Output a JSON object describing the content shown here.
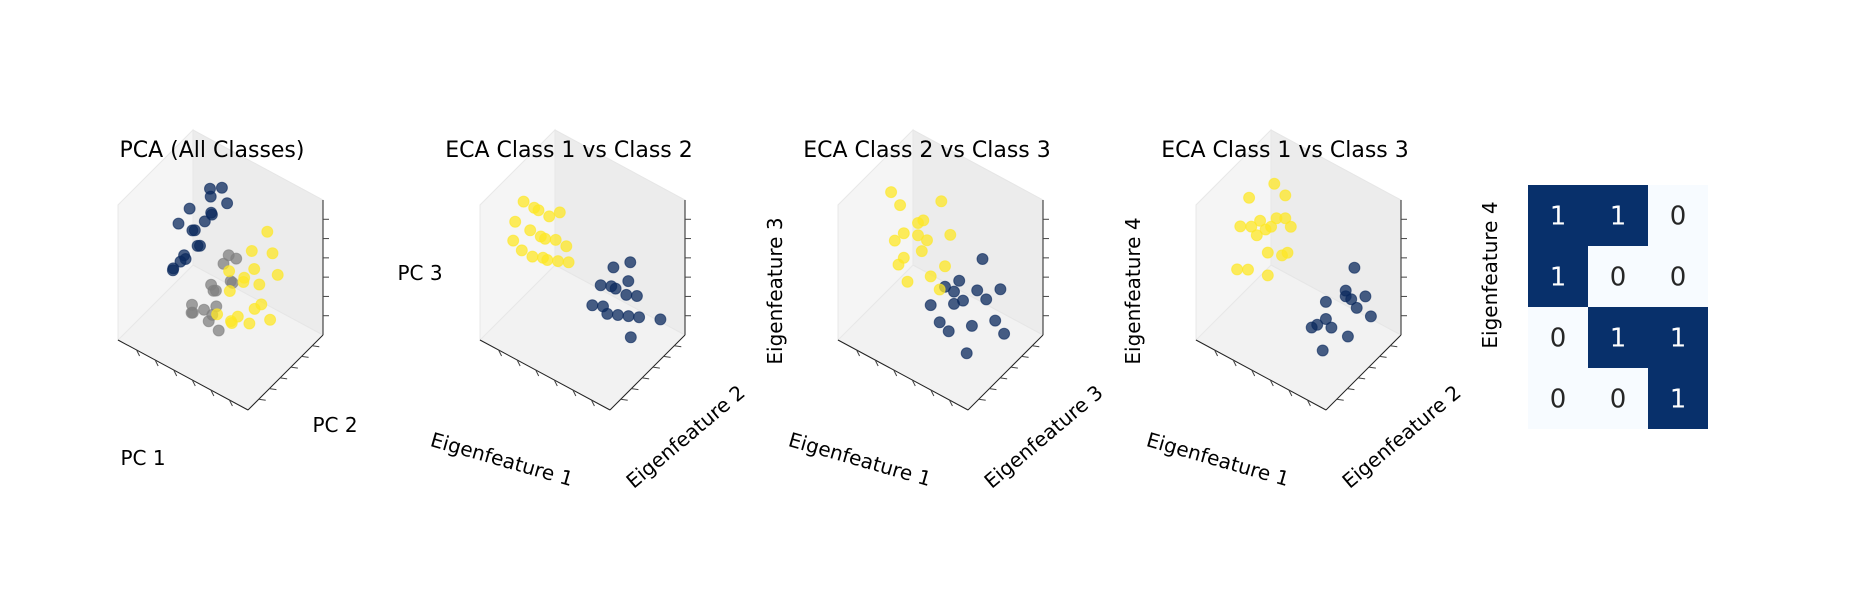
{
  "chart_data": [
    {
      "type": "scatter",
      "title": "PCA (All Classes)",
      "xlabel": "PC 1",
      "ylabel": "PC 2",
      "zlabel": "PC 3",
      "colors": {
        "class_1": "#0b2a5e",
        "class_2": "#808080",
        "class_3": "#fde725"
      },
      "series": [
        {
          "values": [
            [
              -1.2,
              0.6,
              0.3
            ],
            [
              -1.0,
              0.4,
              0.5
            ],
            [
              -1.3,
              0.9,
              0.2
            ],
            [
              -0.8,
              0.7,
              0.6
            ],
            [
              -1.1,
              0.2,
              0.1
            ],
            [
              -0.9,
              1.0,
              0.8
            ],
            [
              -1.4,
              0.5,
              -0.1
            ],
            [
              -0.7,
              0.3,
              0.4
            ],
            [
              -1.0,
              0.8,
              0.9
            ],
            [
              -1.2,
              0.1,
              0.0
            ],
            [
              -0.6,
              0.9,
              0.7
            ],
            [
              -1.5,
              0.7,
              0.5
            ],
            [
              -0.9,
              0.5,
              0.2
            ],
            [
              -1.3,
              0.3,
              0.6
            ],
            [
              -0.8,
              0.1,
              0.3
            ],
            [
              -1.1,
              0.9,
              0.4
            ],
            [
              -1.6,
              0.4,
              -0.3
            ],
            [
              -0.7,
              0.6,
              1.0
            ]
          ]
        },
        {
          "values": [
            [
              -0.2,
              0.3,
              -0.2
            ],
            [
              0.0,
              0.1,
              0.1
            ],
            [
              -0.4,
              0.5,
              -0.4
            ],
            [
              0.2,
              0.4,
              0.0
            ],
            [
              -0.3,
              -0.1,
              -0.3
            ],
            [
              0.1,
              0.6,
              0.2
            ],
            [
              -0.1,
              0.2,
              -0.5
            ],
            [
              0.3,
              0.0,
              -0.1
            ],
            [
              -0.5,
              0.3,
              -0.6
            ],
            [
              0.0,
              0.5,
              0.3
            ],
            [
              -0.2,
              -0.2,
              -0.2
            ],
            [
              0.4,
              0.3,
              0.1
            ],
            [
              -0.6,
              0.1,
              -0.4
            ],
            [
              0.2,
              -0.1,
              -0.3
            ],
            [
              -0.3,
              0.6,
              0.0
            ],
            [
              0.1,
              0.2,
              -0.7
            ]
          ]
        },
        {
          "values": [
            [
              0.9,
              0.2,
              0.4
            ],
            [
              1.1,
              0.4,
              0.2
            ],
            [
              0.7,
              0.0,
              0.6
            ],
            [
              1.3,
              0.3,
              0.0
            ],
            [
              0.8,
              0.5,
              0.3
            ],
            [
              1.0,
              -0.2,
              0.5
            ],
            [
              1.2,
              0.1,
              -0.2
            ],
            [
              0.6,
              0.4,
              0.1
            ],
            [
              1.4,
              0.6,
              0.3
            ],
            [
              0.9,
              -0.1,
              -0.1
            ],
            [
              1.1,
              0.7,
              0.5
            ],
            [
              0.7,
              0.2,
              -0.3
            ],
            [
              1.5,
              0.0,
              0.2
            ],
            [
              0.8,
              0.8,
              0.7
            ],
            [
              1.2,
              -0.3,
              0.1
            ],
            [
              1.0,
              0.3,
              0.8
            ],
            [
              1.3,
              0.5,
              -0.4
            ],
            [
              0.6,
              -0.2,
              0.0
            ]
          ]
        }
      ]
    },
    {
      "type": "scatter",
      "title": "ECA Class 1 vs Class 2",
      "xlabel": "Eigenfeature 1",
      "ylabel": "Eigenfeature 2",
      "zlabel": "",
      "colors": {
        "class_1": "#0b2a5e",
        "class_3": "#fde725"
      },
      "series": [
        {
          "values": [
            [
              0.5,
              0.2,
              -0.2
            ],
            [
              0.6,
              0.3,
              -0.3
            ],
            [
              0.7,
              0.1,
              -0.4
            ],
            [
              0.8,
              0.4,
              -0.5
            ],
            [
              0.6,
              0.0,
              -0.3
            ],
            [
              0.9,
              0.2,
              -0.6
            ],
            [
              0.7,
              0.5,
              -0.4
            ],
            [
              1.0,
              0.3,
              -0.7
            ],
            [
              0.5,
              0.4,
              -0.1
            ],
            [
              0.8,
              0.1,
              -0.5
            ],
            [
              1.1,
              0.4,
              -0.8
            ],
            [
              0.6,
              0.6,
              -0.2
            ],
            [
              0.9,
              0.5,
              -0.6
            ],
            [
              1.2,
              0.2,
              -0.9
            ],
            [
              0.7,
              0.3,
              -0.3
            ],
            [
              1.3,
              0.6,
              -1.0
            ]
          ]
        },
        {
          "values": [
            [
              -0.9,
              -0.2,
              0.9
            ],
            [
              -0.7,
              -0.1,
              0.7
            ],
            [
              -0.5,
              0.0,
              0.5
            ],
            [
              -0.8,
              0.1,
              0.8
            ],
            [
              -0.6,
              -0.3,
              0.6
            ],
            [
              -0.4,
              0.1,
              0.4
            ],
            [
              -1.0,
              0.0,
              1.0
            ],
            [
              -0.3,
              -0.1,
              0.3
            ],
            [
              -0.7,
              0.2,
              0.6
            ],
            [
              -0.5,
              -0.2,
              0.4
            ],
            [
              -0.2,
              0.0,
              0.2
            ],
            [
              -0.9,
              0.1,
              0.8
            ],
            [
              -0.6,
              0.0,
              0.5
            ],
            [
              -0.3,
              0.2,
              0.2
            ],
            [
              -0.8,
              -0.3,
              0.7
            ],
            [
              -0.4,
              -0.1,
              0.3
            ],
            [
              -0.1,
              0.1,
              0.1
            ],
            [
              -0.6,
              0.3,
              0.6
            ]
          ]
        }
      ]
    },
    {
      "type": "scatter",
      "title": "ECA Class 2 vs Class 3",
      "xlabel": "Eigenfeature 1",
      "ylabel": "Eigenfeature 3",
      "zlabel": "Eigenfeature 3",
      "colors": {
        "class_1": "#0b2a5e",
        "class_3": "#fde725"
      },
      "series": [
        {
          "values": [
            [
              0.2,
              0.1,
              -0.3
            ],
            [
              0.3,
              0.2,
              -0.5
            ],
            [
              0.1,
              0.0,
              -0.4
            ],
            [
              0.4,
              0.3,
              -0.7
            ],
            [
              0.2,
              0.1,
              -0.6
            ],
            [
              0.3,
              0.0,
              -0.8
            ],
            [
              0.5,
              0.2,
              -1.0
            ],
            [
              0.1,
              0.2,
              -0.5
            ],
            [
              0.4,
              0.1,
              -0.9
            ],
            [
              0.2,
              0.3,
              -0.2
            ],
            [
              0.3,
              0.1,
              -0.4
            ],
            [
              0.6,
              0.2,
              -1.2
            ],
            [
              0.2,
              0.0,
              -0.7
            ],
            [
              0.4,
              0.2,
              -0.6
            ],
            [
              0.1,
              0.1,
              -0.3
            ],
            [
              0.5,
              0.0,
              -1.1
            ]
          ]
        },
        {
          "values": [
            [
              -0.2,
              0.0,
              0.4
            ],
            [
              -0.1,
              0.1,
              0.6
            ],
            [
              0.0,
              0.0,
              0.8
            ],
            [
              -0.3,
              0.2,
              0.5
            ],
            [
              -0.2,
              0.1,
              0.9
            ],
            [
              0.1,
              0.0,
              0.3
            ],
            [
              -0.1,
              -0.1,
              0.7
            ],
            [
              -0.4,
              0.1,
              1.1
            ],
            [
              0.0,
              0.2,
              0.5
            ],
            [
              -0.2,
              0.0,
              1.0
            ],
            [
              0.1,
              0.1,
              0.2
            ],
            [
              -0.3,
              0.0,
              0.7
            ],
            [
              -0.1,
              0.2,
              1.2
            ],
            [
              0.0,
              -0.1,
              0.4
            ],
            [
              -0.2,
              0.1,
              0.6
            ],
            [
              0.2,
              0.0,
              0.1
            ],
            [
              -0.5,
              0.1,
              1.3
            ]
          ]
        }
      ]
    },
    {
      "type": "scatter",
      "title": "ECA Class 1 vs Class 3",
      "xlabel": "Eigenfeature 1",
      "ylabel": "Eigenfeature 2",
      "zlabel": "Eigenfeature 4",
      "colors": {
        "class_1": "#0b2a5e",
        "class_3": "#fde725"
      },
      "series": [
        {
          "values": [
            [
              0.5,
              0.1,
              -0.2
            ],
            [
              0.6,
              0.2,
              -0.3
            ],
            [
              0.5,
              0.0,
              -0.4
            ],
            [
              0.7,
              0.3,
              -0.5
            ],
            [
              0.6,
              0.1,
              -0.6
            ],
            [
              0.8,
              0.2,
              -0.4
            ],
            [
              0.5,
              0.3,
              -0.1
            ],
            [
              0.7,
              0.0,
              -0.7
            ],
            [
              0.6,
              0.2,
              -0.2
            ],
            [
              0.9,
              0.1,
              -0.6
            ],
            [
              0.5,
              0.1,
              -0.5
            ],
            [
              0.7,
              0.2,
              -0.3
            ],
            [
              0.8,
              0.3,
              -0.8
            ],
            [
              0.6,
              0.0,
              -0.3
            ]
          ]
        },
        {
          "values": [
            [
              -0.6,
              0.1,
              0.5
            ],
            [
              -0.5,
              0.0,
              0.7
            ],
            [
              -0.4,
              0.2,
              0.4
            ],
            [
              -0.7,
              0.1,
              0.6
            ],
            [
              -0.3,
              0.0,
              0.5
            ],
            [
              -0.5,
              0.2,
              0.9
            ],
            [
              -0.6,
              -0.1,
              0.3
            ],
            [
              -0.4,
              0.1,
              0.8
            ],
            [
              -0.8,
              0.0,
              0.7
            ],
            [
              -0.3,
              0.1,
              0.2
            ],
            [
              -0.5,
              0.1,
              0.6
            ],
            [
              -0.7,
              0.2,
              1.0
            ],
            [
              -0.4,
              -0.1,
              0.4
            ],
            [
              -0.6,
              0.0,
              0.8
            ],
            [
              -0.2,
              0.1,
              0.3
            ],
            [
              -0.5,
              0.2,
              0.5
            ],
            [
              -0.9,
              0.1,
              0.9
            ],
            [
              -0.3,
              0.0,
              0.1
            ]
          ]
        }
      ]
    },
    {
      "type": "heatmap",
      "ylabel": "Eigenfeature 4",
      "colors": {
        "high": "#08306b",
        "low": "#f7fbff",
        "text_high": "#ffffff",
        "text_low": "#262626"
      },
      "values": [
        [
          1,
          1,
          0
        ],
        [
          1,
          0,
          0
        ],
        [
          0,
          1,
          1
        ],
        [
          0,
          0,
          1
        ]
      ]
    }
  ]
}
